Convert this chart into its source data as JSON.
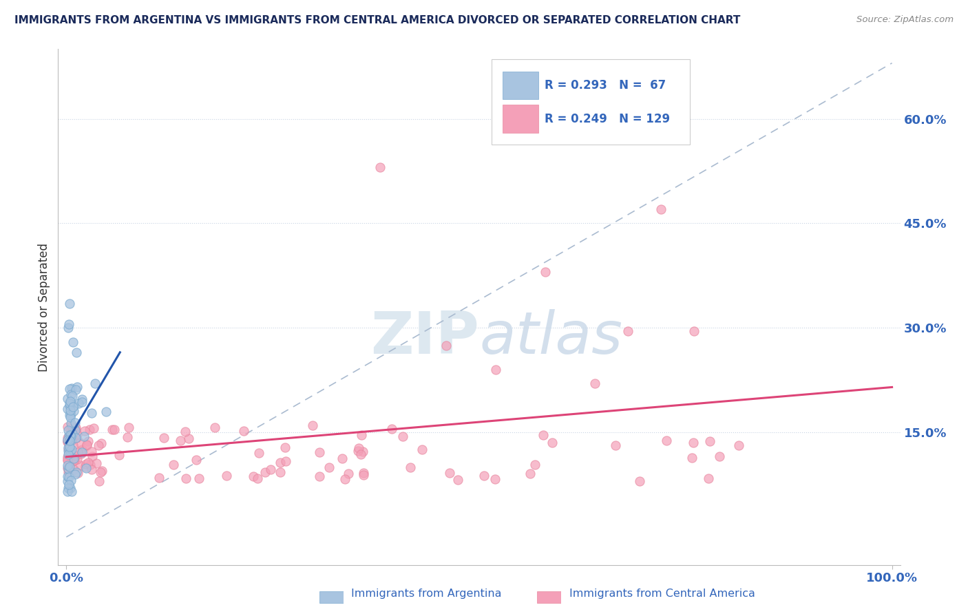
{
  "title": "IMMIGRANTS FROM ARGENTINA VS IMMIGRANTS FROM CENTRAL AMERICA DIVORCED OR SEPARATED CORRELATION CHART",
  "source": "Source: ZipAtlas.com",
  "ylabel": "Divorced or Separated",
  "right_yticks": [
    "15.0%",
    "30.0%",
    "45.0%",
    "60.0%"
  ],
  "right_ytick_vals": [
    0.15,
    0.3,
    0.45,
    0.6
  ],
  "legend_blue_label": "Immigrants from Argentina",
  "legend_pink_label": "Immigrants from Central America",
  "legend_R_blue": "R = 0.293",
  "legend_N_blue": "N =  67",
  "legend_R_pink": "R = 0.249",
  "legend_N_pink": "N = 129",
  "blue_color": "#a8c4e0",
  "pink_color": "#f4a0b8",
  "blue_edge_color": "#7aaad0",
  "pink_edge_color": "#e888a0",
  "blue_line_color": "#2255aa",
  "pink_line_color": "#dd4477",
  "ref_line_color": "#aabbd0",
  "title_color": "#1a2a5a",
  "axis_label_color": "#3366bb",
  "watermark_color": "#dde8f0",
  "ylim_min": -0.04,
  "ylim_max": 0.7,
  "xlim_min": -0.01,
  "xlim_max": 1.01
}
